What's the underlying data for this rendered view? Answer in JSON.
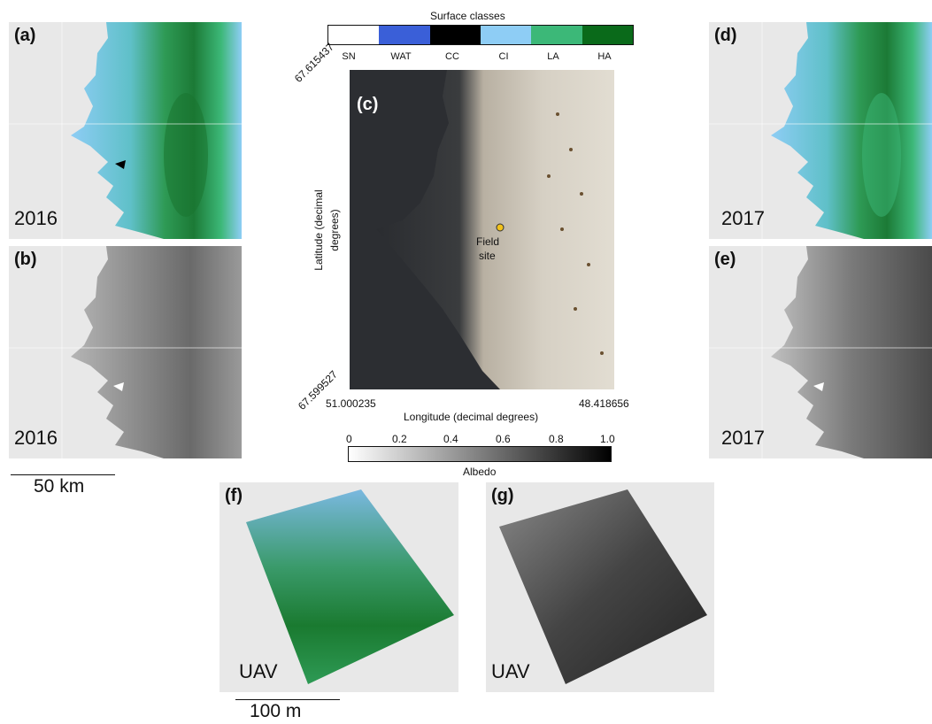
{
  "panels": {
    "a": {
      "label": "(a)",
      "year": "2016"
    },
    "b": {
      "label": "(b)",
      "year": "2016"
    },
    "c": {
      "label": "(c)"
    },
    "d": {
      "label": "(d)",
      "year": "2017"
    },
    "e": {
      "label": "(e)",
      "year": "2017"
    },
    "f": {
      "label": "(f)",
      "caption": "UAV"
    },
    "g": {
      "label": "(g)",
      "caption": "UAV"
    }
  },
  "scalebars": {
    "satellite": "50 km",
    "uav": "100 m"
  },
  "surface_classes": {
    "title": "Surface classes",
    "classes": [
      {
        "code": "SN",
        "color": "#ffffff"
      },
      {
        "code": "WAT",
        "color": "#3a5fd8"
      },
      {
        "code": "CC",
        "color": "#000000"
      },
      {
        "code": "CI",
        "color": "#8ecdf5"
      },
      {
        "code": "LA",
        "color": "#3cb878"
      },
      {
        "code": "HA",
        "color": "#0a6a1a"
      }
    ]
  },
  "map_c": {
    "lat_top": "67.615437",
    "lat_bottom": "67.599527",
    "lon_left": "51.000235",
    "lon_right": "48.418656",
    "ylabel_line1": "Latitude (decimal",
    "ylabel_line2": "degrees)",
    "xlabel": "Longitude (decimal degrees)",
    "site_line1": "Field",
    "site_line2": "site",
    "site_color": "#f2c21b"
  },
  "albedo_scale": {
    "title": "Albedo",
    "ticks": [
      "0",
      "0.2",
      "0.4",
      "0.6",
      "0.8",
      "1.0"
    ]
  }
}
